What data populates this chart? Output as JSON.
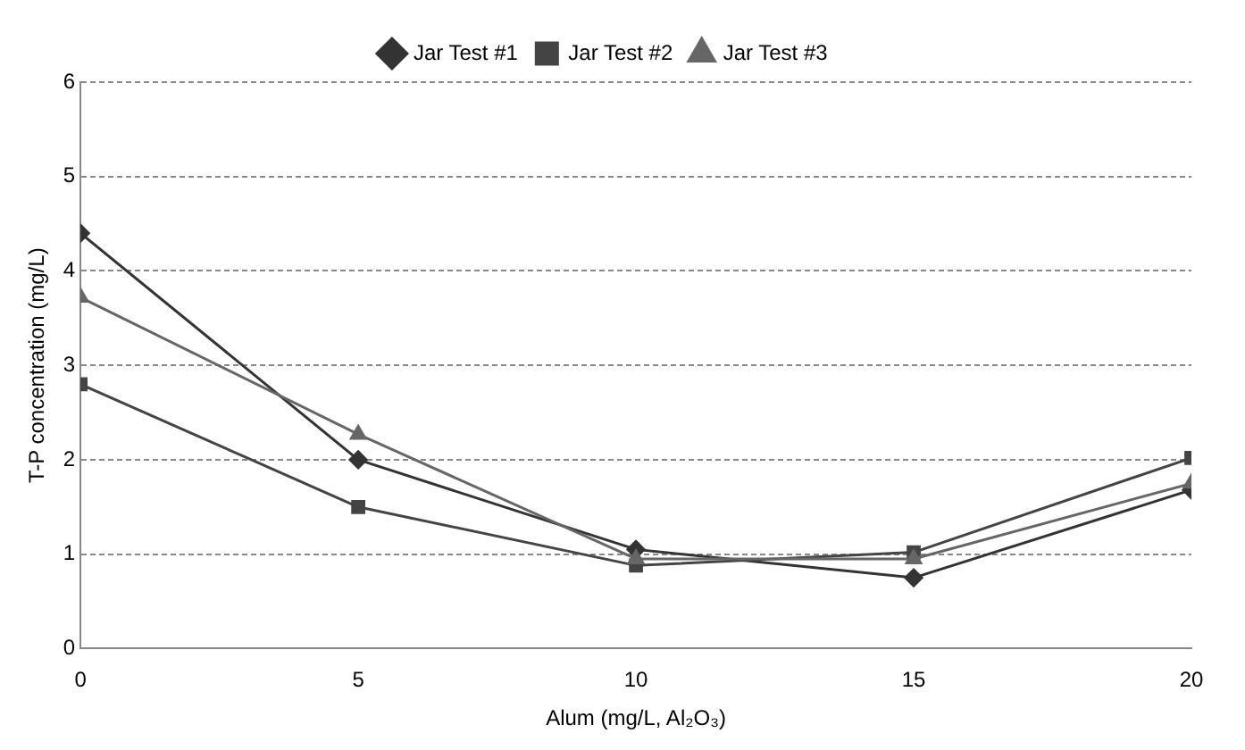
{
  "chart_data": {
    "type": "line",
    "xlabel": "Alum (mg/L, Al₂O₃)",
    "ylabel": "T-P concentration (mg/L)",
    "x": [
      0,
      5,
      10,
      15,
      20
    ],
    "series": [
      {
        "name": "Jar Test #1",
        "color": "#333333",
        "marker": "diamond",
        "values": [
          4.4,
          2.0,
          1.05,
          0.75,
          1.68
        ]
      },
      {
        "name": "Jar Test #2",
        "color": "#444444",
        "marker": "square",
        "values": [
          2.8,
          1.5,
          0.88,
          1.02,
          2.02
        ]
      },
      {
        "name": "Jar Test #3",
        "color": "#666666",
        "marker": "triangle",
        "values": [
          3.72,
          2.27,
          0.95,
          0.95,
          1.75
        ]
      }
    ],
    "xlim": [
      0,
      20
    ],
    "xticks": [
      0,
      5,
      10,
      15,
      20
    ],
    "ylim": [
      0,
      6
    ],
    "yticks": [
      0,
      1,
      2,
      3,
      4,
      5,
      6
    ],
    "grid": "y",
    "legend": "top",
    "line_style": "solid"
  }
}
